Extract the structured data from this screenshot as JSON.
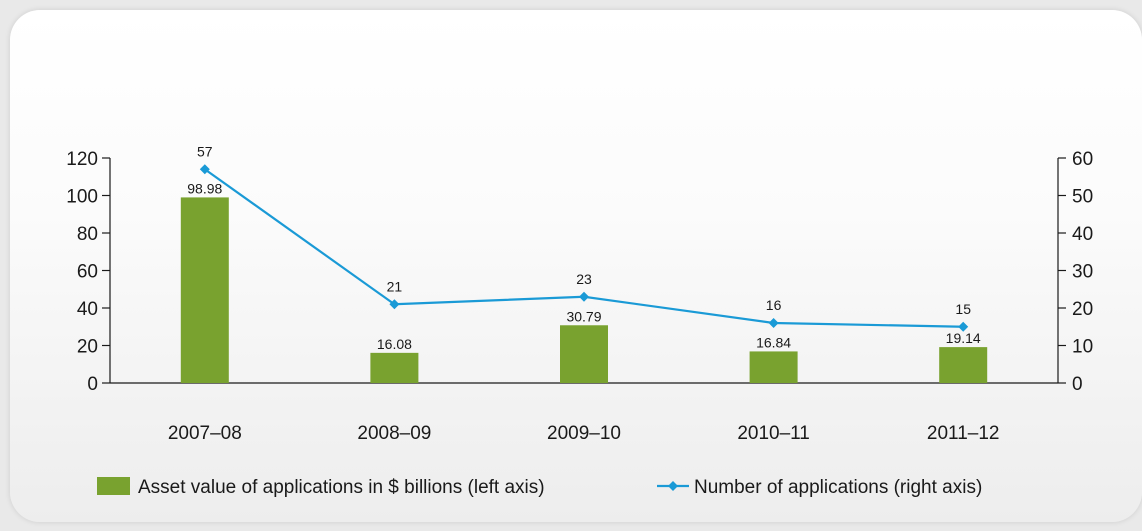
{
  "chart_data": {
    "type": "bar",
    "categories": [
      "2007–08",
      "2008–09",
      "2009–10",
      "2010–11",
      "2011–12"
    ],
    "series": [
      {
        "name": "Asset value of applications in $ billions (left axis)",
        "type": "bar",
        "axis": "left",
        "values": [
          98.98,
          16.08,
          30.79,
          16.84,
          19.14
        ],
        "labels": [
          "98.98",
          "16.08",
          "30.79",
          "16.84",
          "19.14"
        ],
        "color": "#79a22f"
      },
      {
        "name": "Number of applications (right axis)",
        "type": "line",
        "axis": "right",
        "values": [
          57,
          21,
          23,
          16,
          15
        ],
        "labels": [
          "57",
          "21",
          "23",
          "16",
          "15"
        ],
        "color": "#1a9ad6"
      }
    ],
    "y_left": {
      "min": 0,
      "max": 120,
      "ticks": [
        "0",
        "20",
        "40",
        "60",
        "80",
        "100",
        "120"
      ]
    },
    "y_right": {
      "min": 0,
      "max": 60,
      "ticks": [
        "0",
        "10",
        "20",
        "30",
        "40",
        "50",
        "60"
      ]
    },
    "legend_position": "bottom",
    "grid": false
  }
}
